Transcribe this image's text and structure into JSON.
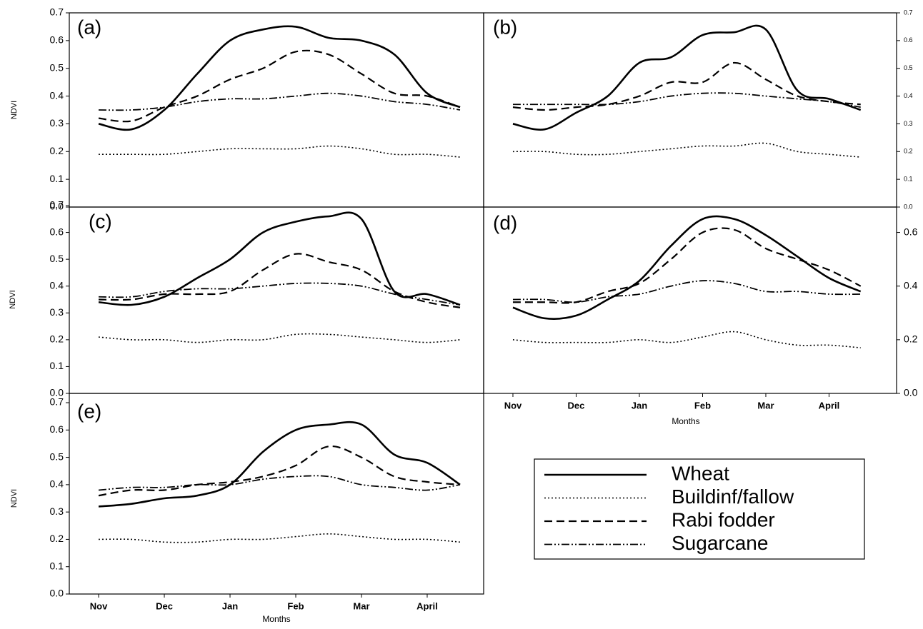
{
  "chart_data": [
    {
      "type": "line",
      "title": "(a)",
      "y_label": "NDVI",
      "x": [
        0,
        0.5,
        1,
        1.5,
        2,
        2.5,
        3,
        3.5,
        4,
        4.5,
        5,
        5.5
      ],
      "xlim": [
        -0.446,
        5.859
      ],
      "ylim": [
        0,
        0.7
      ],
      "y_axis_side": "left",
      "yticks": [
        {
          "value": 0,
          "label": "0.0"
        },
        0.1,
        0.2,
        0.3,
        0.4,
        0.5,
        0.6,
        0.7
      ],
      "series": [
        {
          "name": "Wheat",
          "color": "#000000",
          "dash": "solid",
          "values": [
            0.3,
            0.28,
            0.35,
            0.48,
            0.6,
            0.64,
            0.65,
            0.61,
            0.6,
            0.55,
            0.41,
            0.36
          ]
        },
        {
          "name": "Buildinf/fallow",
          "color": "#000000",
          "dash": "dotted",
          "values": [
            0.19,
            0.19,
            0.19,
            0.2,
            0.21,
            0.21,
            0.21,
            0.22,
            0.21,
            0.19,
            0.19,
            0.18
          ]
        },
        {
          "name": "Rabi fodder",
          "color": "#000000",
          "dash": "dashed",
          "values": [
            0.32,
            0.31,
            0.36,
            0.4,
            0.46,
            0.5,
            0.56,
            0.55,
            0.48,
            0.41,
            0.4,
            0.36
          ]
        },
        {
          "name": "Sugarcane",
          "color": "#000000",
          "dash": "dashdotdot",
          "values": [
            0.35,
            0.35,
            0.36,
            0.38,
            0.39,
            0.39,
            0.4,
            0.41,
            0.4,
            0.38,
            0.37,
            0.35
          ]
        }
      ]
    },
    {
      "type": "line",
      "title": "(b)",
      "x": [
        0,
        0.5,
        1,
        1.5,
        2,
        2.5,
        3,
        3.5,
        4,
        4.5,
        5,
        5.5
      ],
      "xlim": [
        -0.463,
        6.068
      ],
      "ylim": [
        0,
        0.7
      ],
      "y_axis_side": "right",
      "yticks": [
        {
          "value": 0,
          "label": "0.0"
        },
        0.1,
        0.2,
        0.3,
        0.4,
        0.5,
        0.6,
        0.7
      ],
      "series": [
        {
          "color": "#000000",
          "dash": "solid",
          "values": [
            0.3,
            0.28,
            0.34,
            0.4,
            0.52,
            0.54,
            0.62,
            0.63,
            0.64,
            0.42,
            0.39,
            0.35
          ]
        },
        {
          "color": "#000000",
          "dash": "dotted",
          "values": [
            0.2,
            0.2,
            0.19,
            0.19,
            0.2,
            0.21,
            0.22,
            0.22,
            0.23,
            0.2,
            0.19,
            0.18
          ]
        },
        {
          "color": "#000000",
          "dash": "dashed",
          "values": [
            0.36,
            0.35,
            0.36,
            0.37,
            0.4,
            0.45,
            0.45,
            0.52,
            0.46,
            0.4,
            0.38,
            0.37
          ]
        },
        {
          "color": "#000000",
          "dash": "dashdotdot",
          "values": [
            0.37,
            0.37,
            0.37,
            0.37,
            0.38,
            0.4,
            0.41,
            0.41,
            0.4,
            0.39,
            0.38,
            0.36
          ]
        }
      ]
    },
    {
      "type": "line",
      "title": "(c)",
      "y_label": "NDVI",
      "x": [
        0,
        0.5,
        1,
        1.5,
        2,
        2.5,
        3,
        3.5,
        4,
        4.5,
        5,
        5.5
      ],
      "xlim": [
        -0.446,
        5.859
      ],
      "ylim": [
        0,
        0.7
      ],
      "y_axis_side": "left",
      "yticks": [
        {
          "value": 0,
          "label": "0.0"
        },
        0.1,
        0.2,
        0.3,
        0.4,
        0.5,
        0.6,
        0.7
      ],
      "series": [
        {
          "color": "#000000",
          "dash": "solid",
          "values": [
            0.34,
            0.33,
            0.36,
            0.43,
            0.5,
            0.6,
            0.64,
            0.66,
            0.65,
            0.38,
            0.37,
            0.33
          ]
        },
        {
          "color": "#000000",
          "dash": "dotted",
          "values": [
            0.21,
            0.2,
            0.2,
            0.19,
            0.2,
            0.2,
            0.22,
            0.22,
            0.21,
            0.2,
            0.19,
            0.2
          ]
        },
        {
          "color": "#000000",
          "dash": "dashed",
          "values": [
            0.35,
            0.35,
            0.37,
            0.37,
            0.38,
            0.46,
            0.52,
            0.49,
            0.46,
            0.38,
            0.34,
            0.32
          ]
        },
        {
          "color": "#000000",
          "dash": "dashdotdot",
          "values": [
            0.36,
            0.36,
            0.38,
            0.39,
            0.39,
            0.4,
            0.41,
            0.41,
            0.4,
            0.37,
            0.35,
            0.33
          ]
        }
      ]
    },
    {
      "type": "line",
      "title": "(d)",
      "x_label": "Months",
      "x": [
        0,
        0.5,
        1,
        1.5,
        2,
        2.5,
        3,
        3.5,
        4,
        4.5,
        5,
        5.5
      ],
      "xlim": [
        -0.463,
        6.068
      ],
      "ylim": [
        0,
        0.7
      ],
      "y_axis_side": "right",
      "xticks": [
        {
          "value": 0,
          "label": "Nov"
        },
        {
          "value": 1,
          "label": "Dec"
        },
        {
          "value": 2,
          "label": "Jan"
        },
        {
          "value": 3,
          "label": "Feb"
        },
        {
          "value": 4,
          "label": "Mar"
        },
        {
          "value": 5,
          "label": "April"
        }
      ],
      "yticks": [
        {
          "value": 0,
          "label": "0.0"
        },
        0.2,
        0.4,
        0.6
      ],
      "series": [
        {
          "color": "#000000",
          "dash": "solid",
          "values": [
            0.32,
            0.28,
            0.29,
            0.35,
            0.42,
            0.55,
            0.65,
            0.65,
            0.59,
            0.51,
            0.43,
            0.38
          ]
        },
        {
          "color": "#000000",
          "dash": "dotted",
          "values": [
            0.2,
            0.19,
            0.19,
            0.19,
            0.2,
            0.19,
            0.21,
            0.23,
            0.2,
            0.18,
            0.18,
            0.17
          ]
        },
        {
          "color": "#000000",
          "dash": "dashed",
          "values": [
            0.34,
            0.34,
            0.34,
            0.38,
            0.41,
            0.5,
            0.6,
            0.61,
            0.54,
            0.5,
            0.46,
            0.4
          ]
        },
        {
          "color": "#000000",
          "dash": "dashdotdot",
          "values": [
            0.35,
            0.35,
            0.34,
            0.36,
            0.37,
            0.4,
            0.42,
            0.41,
            0.38,
            0.38,
            0.37,
            0.37
          ]
        }
      ]
    },
    {
      "type": "line",
      "title": "(e)",
      "x_label": "Months",
      "y_label": "NDVI",
      "x": [
        0,
        0.5,
        1,
        1.5,
        2,
        2.5,
        3,
        3.5,
        4,
        4.5,
        5,
        5.5
      ],
      "xlim": [
        -0.446,
        5.859
      ],
      "ylim": [
        0,
        0.7
      ],
      "y_axis_side": "left",
      "xticks": [
        {
          "value": 0,
          "label": "Nov"
        },
        {
          "value": 1,
          "label": "Dec"
        },
        {
          "value": 2,
          "label": "Jan"
        },
        {
          "value": 3,
          "label": "Feb"
        },
        {
          "value": 4,
          "label": "Mar"
        },
        {
          "value": 5,
          "label": "April"
        }
      ],
      "yticks": [
        {
          "value": 0,
          "label": "0.0"
        },
        0.1,
        0.2,
        0.3,
        0.4,
        0.5,
        0.6,
        0.7
      ],
      "series": [
        {
          "color": "#000000",
          "dash": "solid",
          "values": [
            0.32,
            0.33,
            0.35,
            0.36,
            0.4,
            0.52,
            0.6,
            0.62,
            0.62,
            0.51,
            0.48,
            0.4
          ]
        },
        {
          "color": "#000000",
          "dash": "dotted",
          "values": [
            0.2,
            0.2,
            0.19,
            0.19,
            0.2,
            0.2,
            0.21,
            0.22,
            0.21,
            0.2,
            0.2,
            0.19
          ]
        },
        {
          "color": "#000000",
          "dash": "dashed",
          "values": [
            0.36,
            0.38,
            0.38,
            0.4,
            0.41,
            0.43,
            0.47,
            0.54,
            0.5,
            0.43,
            0.41,
            0.4
          ]
        },
        {
          "color": "#000000",
          "dash": "dashdotdot",
          "values": [
            0.38,
            0.39,
            0.39,
            0.4,
            0.4,
            0.42,
            0.43,
            0.43,
            0.4,
            0.39,
            0.38,
            0.4
          ]
        }
      ]
    }
  ]
}
